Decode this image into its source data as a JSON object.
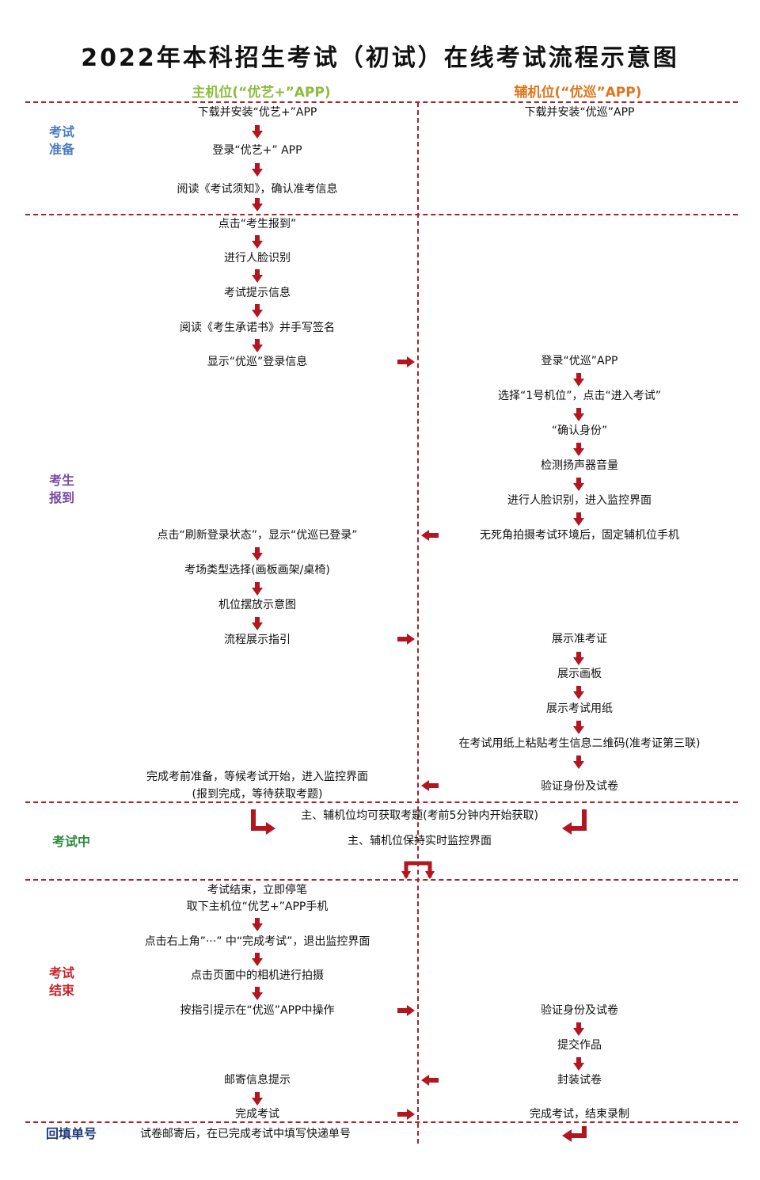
{
  "title": "2022年本科招生考试（初试）在线考试流程示意图",
  "columns": {
    "main": "主机位(“优艺+”APP)",
    "aux": "辅机位(“优巡”APP)"
  },
  "colors": {
    "accent": "#a8232a",
    "main_header": "#8dbb3c",
    "aux_header": "#e0741a",
    "stage_prep": "#4a7cc4",
    "stage_checkin": "#7a4aa8",
    "stage_exam": "#2e8b3c",
    "stage_end": "#c8242c",
    "stage_fill": "#1f3a78"
  },
  "stages": {
    "prep": "考试准备",
    "checkin": "考生报到",
    "exam": "考试中",
    "end": "考试结束",
    "fill": "回填单号"
  },
  "prep": {
    "m1": "下载并安装“优艺+”APP",
    "m2": "登录“优艺+” APP",
    "m3": "阅读《考试须知》，确认准考信息",
    "a1": "下载并安装“优巡”APP"
  },
  "checkin": {
    "m1": "点击“考生报到”",
    "m2": "进行人脸识别",
    "m3": "考试提示信息",
    "m4": "阅读《考生承诺书》并手写签名",
    "m5": "显示“优巡”登录信息",
    "a1": "登录“优巡”APP",
    "a2": "选择“1号机位”，点击“进入考试”",
    "a3": "“确认身份”",
    "a4": "检测扬声器音量",
    "a5": "进行人脸识别，进入监控界面",
    "a6": "无死角拍摄考试环境后，固定辅机位手机",
    "m6": "点击“刷新登录状态”，显示“优巡已登录”",
    "m7": "考场类型选择(画板画架/桌椅)",
    "m8": "机位摆放示意图",
    "m9": "流程展示指引",
    "a7": "展示准考证",
    "a8": "展示画板",
    "a9": "展示考试用纸",
    "a10": "在考试用纸上粘贴考生信息二维码(准考证第三联)",
    "a11": "验证身份及试卷",
    "m10a": "完成考前准备，等候考试开始，进入监控界面",
    "m10b": "(报到完成，等待获取考题)"
  },
  "exam": {
    "c1": "主、辅机位均可获取考题(考前5分钟内开始获取)",
    "c2": "主、辅机位保持实时监控界面"
  },
  "end": {
    "m1": "考试结束，立即停笔",
    "m2": "取下主机位“优艺+”APP手机",
    "m3": "点击右上角”···” 中“完成考试”，退出监控界面",
    "m4": "点击页面中的相机进行拍摄",
    "m5": "按指引提示在“优巡”APP中操作",
    "a1": "验证身份及试卷",
    "a2": "提交作品",
    "a3": "封装试卷",
    "m6": "邮寄信息提示",
    "m7": "完成考试",
    "a4": "完成考试，结束录制"
  },
  "fill": {
    "m1": "试卷邮寄后，在已完成考试中填写快递单号"
  }
}
